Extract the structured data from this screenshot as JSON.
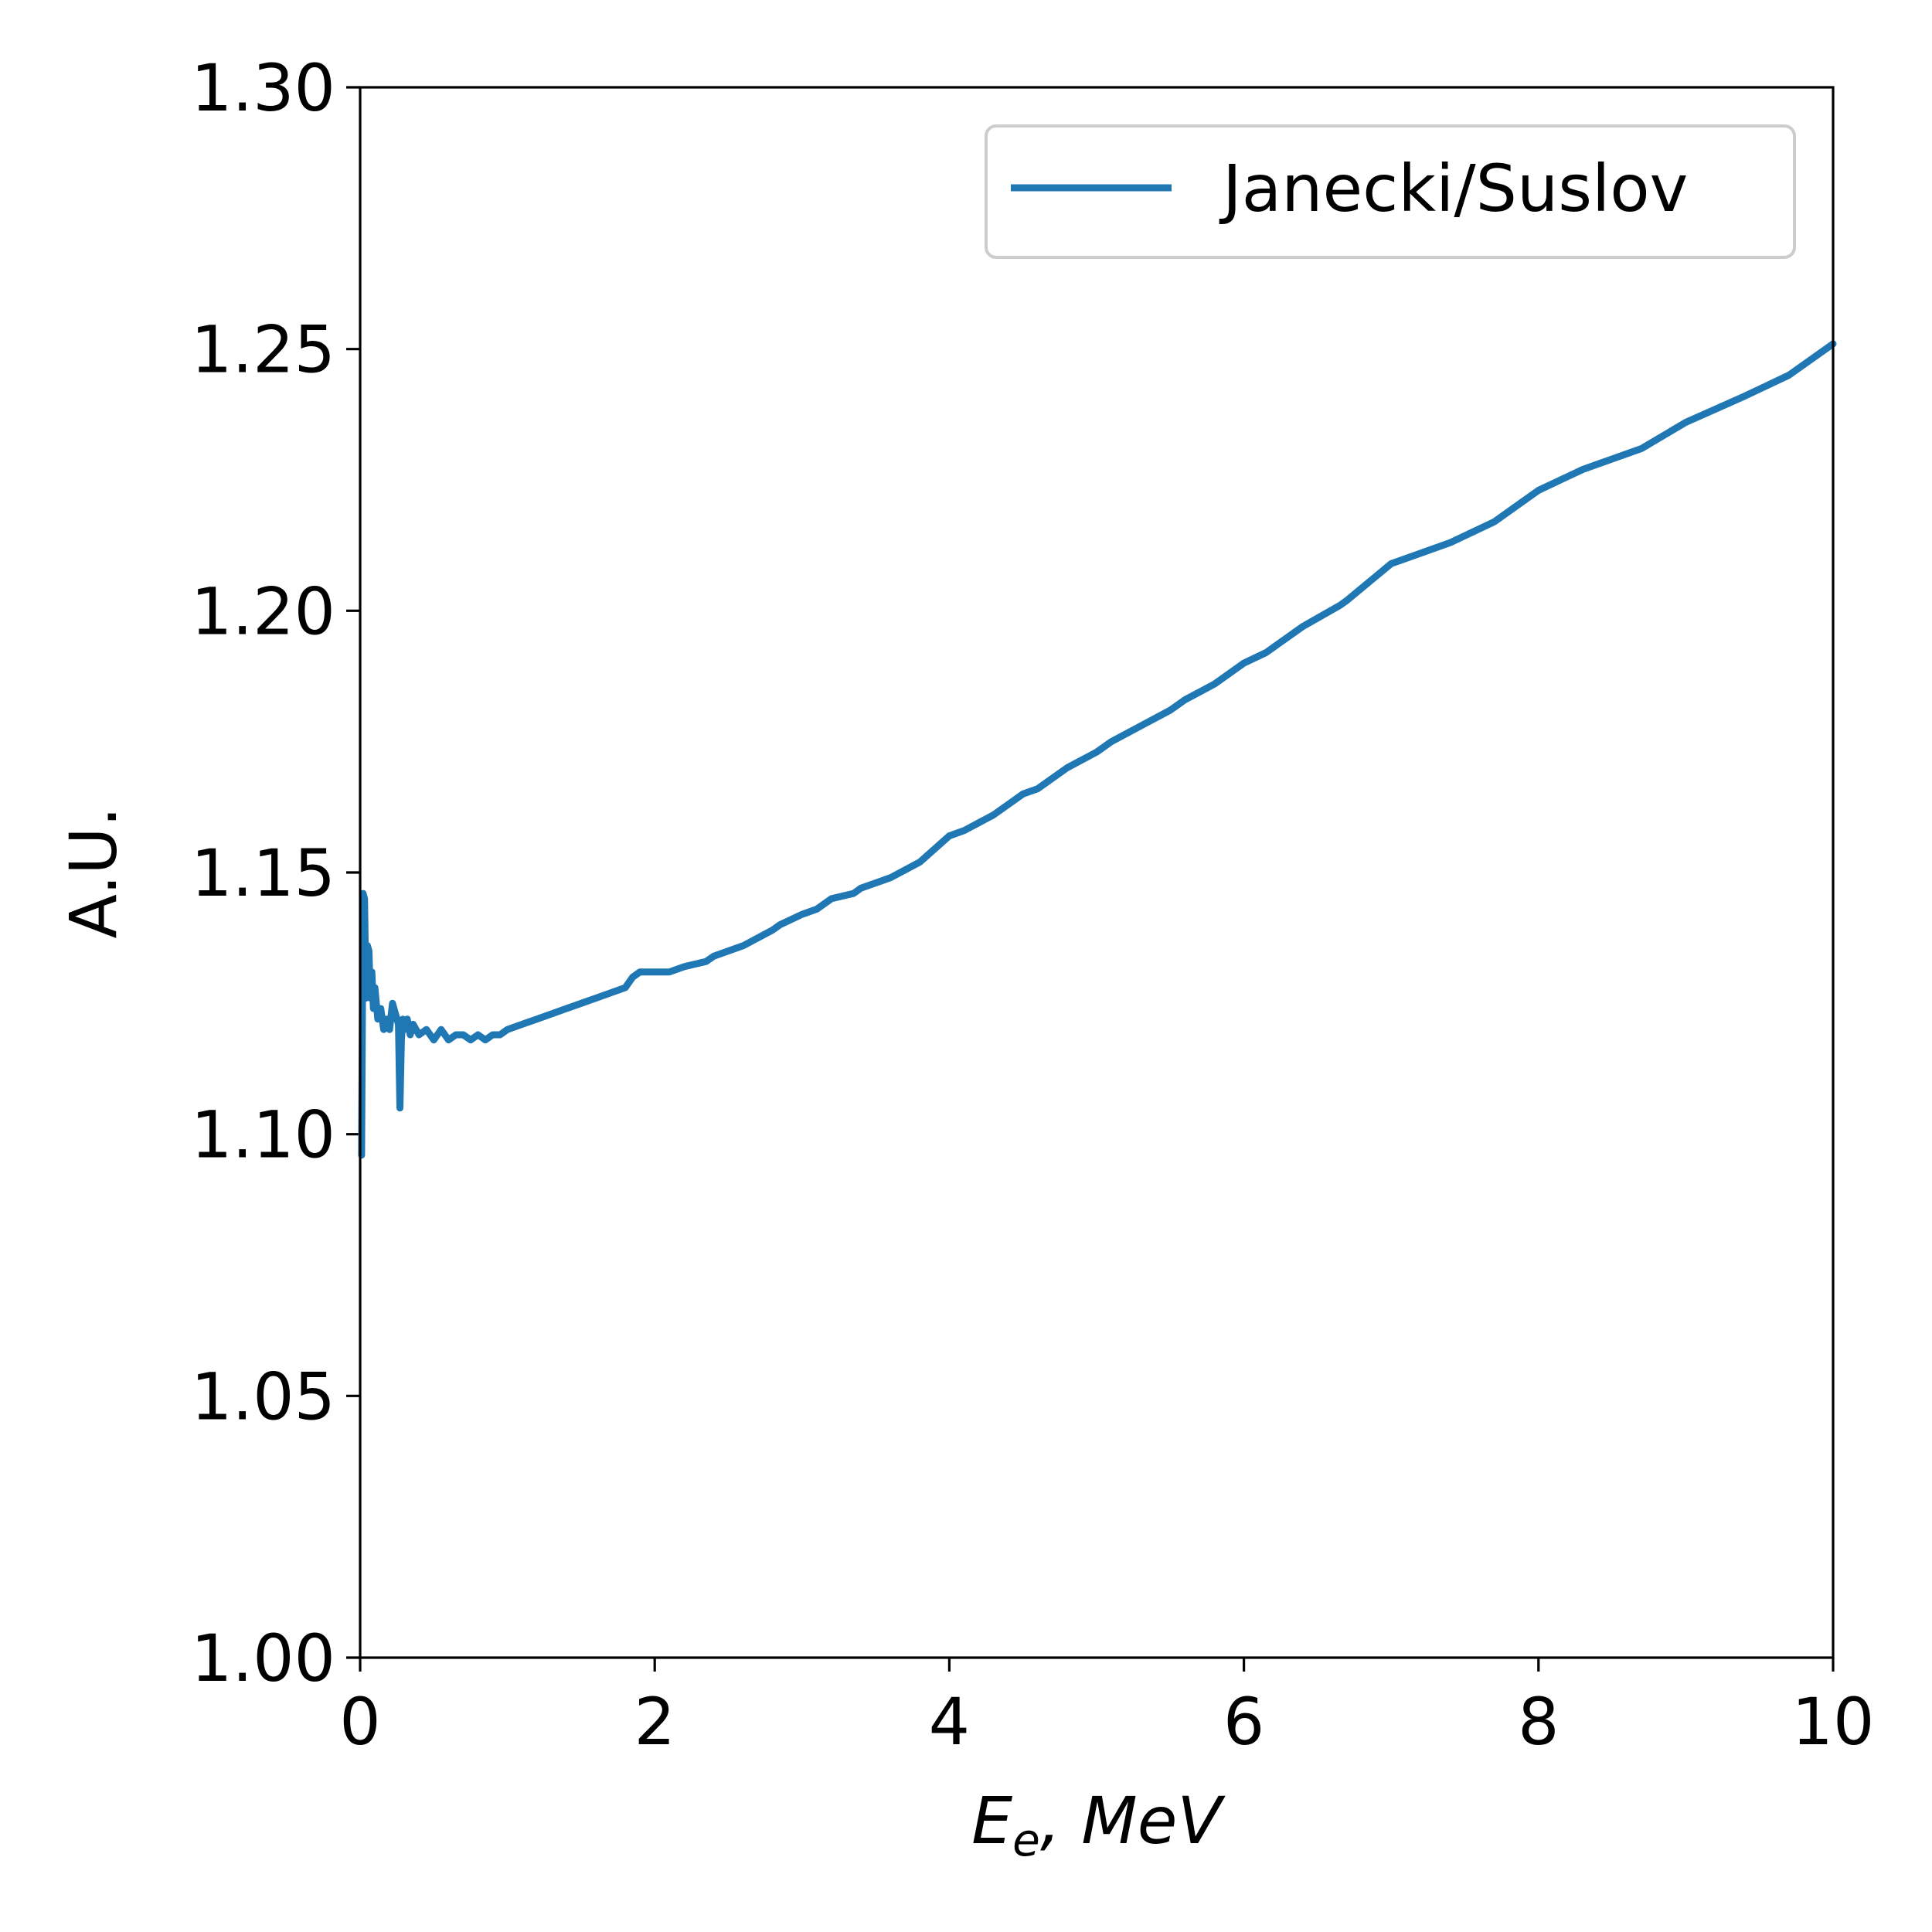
{
  "chart_data": {
    "type": "line",
    "xlabel_main": "E",
    "xlabel_sub": "e",
    "xlabel_rest": ", MeV",
    "ylabel": "A.U.",
    "xlim": [
      0,
      10
    ],
    "ylim": [
      1.0,
      1.3
    ],
    "x_ticks": [
      "0",
      "2",
      "4",
      "6",
      "8",
      "10"
    ],
    "y_ticks": [
      "1.00",
      "1.05",
      "1.10",
      "1.15",
      "1.20",
      "1.25",
      "1.30"
    ],
    "legend_position": "top-right",
    "grid": false,
    "series": [
      {
        "name": "Janecki/Suslov",
        "color": "#1f77b4",
        "x": [
          0.01,
          0.02,
          0.03,
          0.04,
          0.05,
          0.06,
          0.07,
          0.08,
          0.09,
          0.1,
          0.12,
          0.14,
          0.16,
          0.18,
          0.2,
          0.22,
          0.24,
          0.26,
          0.27,
          0.28,
          0.29,
          0.3,
          0.32,
          0.34,
          0.36,
          0.4,
          0.45,
          0.5,
          0.55,
          0.6,
          0.65,
          0.7,
          0.75,
          0.8,
          0.85,
          0.9,
          0.95,
          1.0,
          1.1,
          1.2,
          1.4,
          1.6,
          1.7,
          1.8,
          1.85,
          1.9,
          2.1,
          2.2,
          2.35,
          2.4,
          2.6,
          2.8,
          2.85,
          3.0,
          3.1,
          3.2,
          3.35,
          3.4,
          3.6,
          3.8,
          4.0,
          4.1,
          4.3,
          4.5,
          4.6,
          4.8,
          5.0,
          5.1,
          5.3,
          5.5,
          5.6,
          5.8,
          6.0,
          6.15,
          6.4,
          6.65,
          6.7,
          7.0,
          7.1,
          7.4,
          7.7,
          7.9,
          8.0,
          8.3,
          8.7,
          9.0,
          9.4,
          9.7,
          10.0
        ],
        "values": [
          1.096,
          1.146,
          1.145,
          1.126,
          1.136,
          1.135,
          1.126,
          1.131,
          1.124,
          1.128,
          1.122,
          1.124,
          1.12,
          1.122,
          1.12,
          1.125,
          1.123,
          1.121,
          1.105,
          1.118,
          1.122,
          1.12,
          1.122,
          1.119,
          1.121,
          1.119,
          1.12,
          1.118,
          1.12,
          1.118,
          1.119,
          1.119,
          1.118,
          1.119,
          1.118,
          1.119,
          1.119,
          1.12,
          1.121,
          1.122,
          1.124,
          1.126,
          1.127,
          1.128,
          1.13,
          1.131,
          1.131,
          1.132,
          1.133,
          1.134,
          1.136,
          1.139,
          1.14,
          1.142,
          1.143,
          1.145,
          1.146,
          1.147,
          1.149,
          1.152,
          1.157,
          1.158,
          1.161,
          1.165,
          1.166,
          1.17,
          1.173,
          1.175,
          1.178,
          1.181,
          1.183,
          1.186,
          1.19,
          1.192,
          1.197,
          1.201,
          1.202,
          1.209,
          1.21,
          1.213,
          1.217,
          1.221,
          1.223,
          1.227,
          1.231,
          1.236,
          1.241,
          1.245,
          1.251
        ]
      }
    ]
  }
}
